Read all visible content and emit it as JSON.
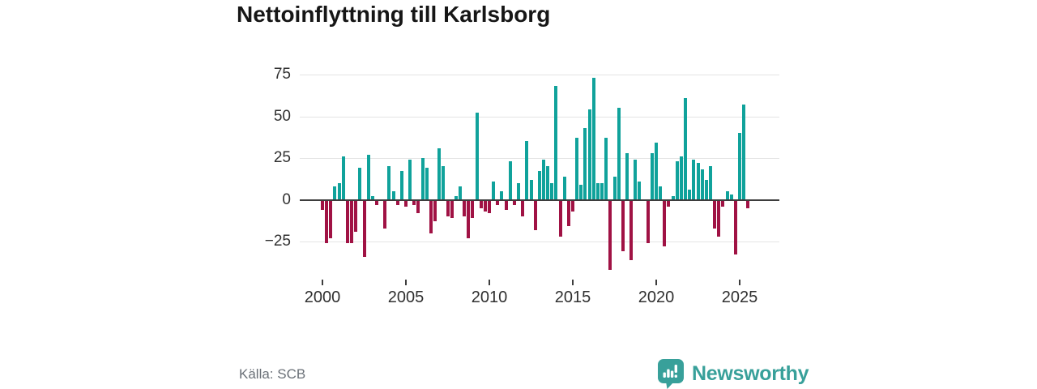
{
  "title": "Nettoinflyttning till Karlsborg",
  "source": "Källa: SCB",
  "branding": {
    "name": "Newsworthy",
    "color": "#38a09a",
    "icon": "newsworthy-bubble-bars-icon"
  },
  "chart_data": {
    "type": "bar",
    "title": "Nettoinflyttning till Karlsborg",
    "xlabel": "",
    "ylabel": "",
    "grid": true,
    "ylim": [
      -45,
      80
    ],
    "y_ticks": [
      75,
      50,
      25,
      0,
      -25
    ],
    "x_ticks": [
      "2000",
      "2005",
      "2010",
      "2015",
      "2020",
      "2025"
    ],
    "x_tick_indices": [
      0,
      20,
      40,
      60,
      80,
      100
    ],
    "colors": {
      "positive": "#10a29b",
      "negative": "#a01244"
    },
    "categories": [
      "2000 Q1",
      "2000 Q2",
      "2000 Q3",
      "2000 Q4",
      "2001 Q1",
      "2001 Q2",
      "2001 Q3",
      "2001 Q4",
      "2002 Q1",
      "2002 Q2",
      "2002 Q3",
      "2002 Q4",
      "2003 Q1",
      "2003 Q2",
      "2003 Q3",
      "2003 Q4",
      "2004 Q1",
      "2004 Q2",
      "2004 Q3",
      "2004 Q4",
      "2005 Q1",
      "2005 Q2",
      "2005 Q3",
      "2005 Q4",
      "2006 Q1",
      "2006 Q2",
      "2006 Q3",
      "2006 Q4",
      "2007 Q1",
      "2007 Q2",
      "2007 Q3",
      "2007 Q4",
      "2008 Q1",
      "2008 Q2",
      "2008 Q3",
      "2008 Q4",
      "2009 Q1",
      "2009 Q2",
      "2009 Q3",
      "2009 Q4",
      "2010 Q1",
      "2010 Q2",
      "2010 Q3",
      "2010 Q4",
      "2011 Q1",
      "2011 Q2",
      "2011 Q3",
      "2011 Q4",
      "2012 Q1",
      "2012 Q2",
      "2012 Q3",
      "2012 Q4",
      "2013 Q1",
      "2013 Q2",
      "2013 Q3",
      "2013 Q4",
      "2014 Q1",
      "2014 Q2",
      "2014 Q3",
      "2014 Q4",
      "2015 Q1",
      "2015 Q2",
      "2015 Q3",
      "2015 Q4",
      "2016 Q1",
      "2016 Q2",
      "2016 Q3",
      "2016 Q4",
      "2017 Q1",
      "2017 Q2",
      "2017 Q3",
      "2017 Q4",
      "2018 Q1",
      "2018 Q2",
      "2018 Q3",
      "2018 Q4",
      "2019 Q1",
      "2019 Q2",
      "2019 Q3",
      "2019 Q4",
      "2020 Q1",
      "2020 Q2",
      "2020 Q3",
      "2020 Q4",
      "2021 Q1",
      "2021 Q2",
      "2021 Q3",
      "2021 Q4",
      "2022 Q1",
      "2022 Q2",
      "2022 Q3",
      "2022 Q4",
      "2023 Q1",
      "2023 Q2",
      "2023 Q3",
      "2023 Q4",
      "2024 Q1",
      "2024 Q2",
      "2024 Q3",
      "2024 Q4",
      "2025 Q1",
      "2025 Q2",
      "2025 Q3"
    ],
    "values": [
      -6,
      -26,
      -23,
      8,
      10,
      26,
      -26,
      -26,
      -19,
      19,
      -34,
      27,
      2,
      -3,
      0,
      -17,
      20,
      5,
      -3,
      17,
      -4,
      24,
      -3,
      -8,
      25,
      19,
      -20,
      -13,
      31,
      20,
      -10,
      -11,
      2,
      8,
      -10,
      -23,
      -11,
      52,
      -5,
      -7,
      -8,
      11,
      -3,
      5,
      -6,
      23,
      -3,
      10,
      -10,
      35,
      12,
      -18,
      17,
      24,
      20,
      10,
      68,
      -22,
      14,
      -16,
      -7,
      37,
      9,
      43,
      54,
      73,
      10,
      10,
      37,
      -42,
      14,
      55,
      -31,
      28,
      -36,
      24,
      11,
      0,
      -26,
      28,
      34,
      8,
      -28,
      -4,
      2,
      23,
      26,
      61,
      6,
      24,
      22,
      18,
      12,
      20,
      -17,
      -22,
      -4,
      5,
      3,
      -33,
      40,
      57,
      -5
    ]
  }
}
